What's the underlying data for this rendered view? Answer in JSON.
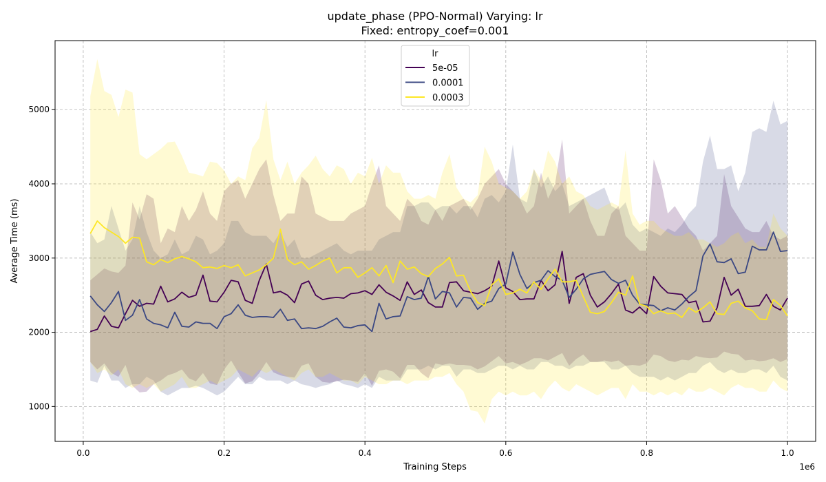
{
  "chart_data": {
    "type": "line",
    "title_line1": "update_phase (PPO-Normal) Varying: lr",
    "title_line2": "Fixed: entropy_coef=0.001",
    "xlabel": "Training Steps",
    "ylabel": "Average Time (ms)",
    "x_offset_label": "1e6",
    "xlim": [
      -0.04,
      1.04
    ],
    "ylim": [
      530,
      5930
    ],
    "x_ticks": [
      0.0,
      0.2,
      0.4,
      0.6,
      0.8,
      1.0
    ],
    "x_tick_labels": [
      "0.0",
      "0.2",
      "0.4",
      "0.6",
      "0.8",
      "1.0"
    ],
    "y_ticks": [
      1000,
      2000,
      3000,
      4000,
      5000
    ],
    "y_tick_labels": [
      "1000",
      "2000",
      "3000",
      "4000",
      "5000"
    ],
    "grid": true,
    "legend": {
      "title": "lr",
      "position": "upper-center"
    },
    "x_start": 0.01,
    "x_step": 0.01,
    "series": [
      {
        "name": "5e-05",
        "color": "#440154",
        "mean": [
          2010,
          2040,
          2220,
          2080,
          2060,
          2250,
          2430,
          2350,
          2390,
          2380,
          2620,
          2410,
          2450,
          2540,
          2470,
          2500,
          2770,
          2420,
          2410,
          2540,
          2700,
          2680,
          2430,
          2390,
          2700,
          2920,
          2530,
          2550,
          2500,
          2400,
          2650,
          2690,
          2500,
          2440,
          2460,
          2470,
          2460,
          2520,
          2530,
          2560,
          2510,
          2640,
          2540,
          2490,
          2430,
          2680,
          2510,
          2570,
          2400,
          2340,
          2340,
          2670,
          2680,
          2560,
          2540,
          2520,
          2560,
          2620,
          2960,
          2600,
          2550,
          2440,
          2450,
          2450,
          2700,
          2560,
          2640,
          3090,
          2390,
          2740,
          2790,
          2500,
          2340,
          2410,
          2520,
          2650,
          2300,
          2260,
          2340,
          2250,
          2750,
          2620,
          2530,
          2520,
          2510,
          2400,
          2420,
          2140,
          2150,
          2330,
          2740,
          2500,
          2580,
          2350,
          2350,
          2360,
          2510,
          2350,
          2300,
          2460
        ],
        "upper": [
          2700,
          2780,
          2860,
          2820,
          2800,
          2900,
          3750,
          3520,
          3860,
          3800,
          3200,
          3400,
          3350,
          3700,
          3500,
          3650,
          3900,
          3600,
          3500,
          3900,
          4000,
          4050,
          3800,
          4000,
          4200,
          4330,
          3850,
          3500,
          3600,
          3600,
          4100,
          4000,
          3600,
          3550,
          3500,
          3500,
          3500,
          3600,
          3650,
          3700,
          4000,
          4250,
          3700,
          3600,
          3500,
          3800,
          3700,
          3500,
          3450,
          3650,
          3500,
          3700,
          3750,
          3800,
          3650,
          3800,
          4000,
          4100,
          4200,
          4000,
          3900,
          3800,
          3600,
          3700,
          4150,
          3800,
          4000,
          4600,
          3600,
          3700,
          3800,
          3500,
          3300,
          3300,
          3600,
          3700,
          3300,
          3200,
          3100,
          3100,
          4330,
          4050,
          3600,
          3700,
          3550,
          3400,
          3300,
          3100,
          3200,
          3300,
          4130,
          3700,
          3550,
          3400,
          3350,
          3350,
          3500,
          3300,
          3250,
          3300
        ],
        "lower": [
          1600,
          1500,
          1580,
          1450,
          1400,
          1560,
          1280,
          1190,
          1200,
          1300,
          1350,
          1420,
          1450,
          1500,
          1380,
          1340,
          1450,
          1310,
          1290,
          1500,
          1620,
          1460,
          1310,
          1340,
          1450,
          1600,
          1460,
          1420,
          1400,
          1390,
          1550,
          1580,
          1400,
          1330,
          1320,
          1340,
          1360,
          1350,
          1330,
          1450,
          1280,
          1480,
          1500,
          1470,
          1380,
          1560,
          1560,
          1450,
          1380,
          1580,
          1560,
          1580,
          1560,
          1560,
          1550,
          1500,
          1540,
          1610,
          1680,
          1580,
          1600,
          1560,
          1600,
          1650,
          1650,
          1620,
          1670,
          1720,
          1550,
          1640,
          1700,
          1600,
          1600,
          1620,
          1600,
          1620,
          1550,
          1560,
          1550,
          1580,
          1700,
          1680,
          1620,
          1600,
          1630,
          1620,
          1680,
          1660,
          1650,
          1660,
          1740,
          1710,
          1700,
          1620,
          1630,
          1610,
          1620,
          1650,
          1600,
          1640
        ]
      },
      {
        "name": "0.0001",
        "color": "#3b4883",
        "mean": [
          2490,
          2370,
          2280,
          2400,
          2550,
          2160,
          2230,
          2440,
          2180,
          2120,
          2100,
          2060,
          2270,
          2080,
          2070,
          2140,
          2120,
          2120,
          2050,
          2210,
          2250,
          2370,
          2230,
          2200,
          2210,
          2210,
          2200,
          2310,
          2160,
          2180,
          2050,
          2060,
          2050,
          2080,
          2140,
          2190,
          2070,
          2060,
          2090,
          2100,
          2010,
          2390,
          2180,
          2210,
          2220,
          2480,
          2440,
          2460,
          2750,
          2450,
          2550,
          2530,
          2340,
          2470,
          2460,
          2310,
          2390,
          2420,
          2590,
          2650,
          3080,
          2780,
          2590,
          2670,
          2700,
          2830,
          2750,
          2700,
          2470,
          2580,
          2720,
          2780,
          2800,
          2820,
          2710,
          2660,
          2700,
          2500,
          2380,
          2370,
          2360,
          2290,
          2330,
          2300,
          2380,
          2480,
          2560,
          3030,
          3190,
          2950,
          2940,
          2990,
          2790,
          2810,
          3160,
          3110,
          3110,
          3350,
          3090,
          3100
        ],
        "upper": [
          3350,
          3200,
          3250,
          3700,
          3400,
          3100,
          3250,
          3700,
          3350,
          3100,
          3000,
          3050,
          3250,
          3050,
          3100,
          3300,
          3250,
          3050,
          3100,
          3200,
          3500,
          3500,
          3350,
          3300,
          3300,
          3300,
          3200,
          3350,
          3150,
          3250,
          3000,
          3000,
          3050,
          3100,
          3150,
          3200,
          3100,
          3050,
          3100,
          3100,
          3100,
          3250,
          3300,
          3350,
          3350,
          3700,
          3700,
          3750,
          3750,
          3650,
          3700,
          3700,
          3600,
          3700,
          3700,
          3550,
          3800,
          3850,
          3750,
          3900,
          4530,
          3800,
          3750,
          4200,
          3950,
          4100,
          3900,
          4000,
          3700,
          3750,
          3800,
          3850,
          3900,
          3950,
          3700,
          3650,
          3750,
          3450,
          3350,
          3400,
          3350,
          3300,
          3400,
          3350,
          3450,
          3600,
          3700,
          4300,
          4650,
          4200,
          4200,
          4250,
          3900,
          4150,
          4700,
          4750,
          4700,
          5120,
          4800,
          4850
        ],
        "lower": [
          1350,
          1320,
          1550,
          1350,
          1350,
          1250,
          1300,
          1300,
          1400,
          1350,
          1200,
          1150,
          1200,
          1250,
          1250,
          1280,
          1250,
          1200,
          1150,
          1200,
          1300,
          1400,
          1300,
          1300,
          1400,
          1350,
          1350,
          1350,
          1300,
          1350,
          1300,
          1280,
          1250,
          1280,
          1300,
          1350,
          1300,
          1280,
          1250,
          1300,
          1250,
          1400,
          1350,
          1350,
          1350,
          1500,
          1500,
          1500,
          1550,
          1500,
          1550,
          1550,
          1400,
          1500,
          1500,
          1450,
          1450,
          1500,
          1550,
          1550,
          1500,
          1550,
          1500,
          1500,
          1600,
          1600,
          1550,
          1550,
          1500,
          1550,
          1550,
          1600,
          1600,
          1600,
          1500,
          1500,
          1550,
          1450,
          1400,
          1400,
          1400,
          1350,
          1400,
          1350,
          1400,
          1450,
          1450,
          1550,
          1600,
          1500,
          1450,
          1500,
          1450,
          1450,
          1500,
          1500,
          1450,
          1550,
          1400,
          1350
        ]
      },
      {
        "name": "0.0003",
        "color": "#fde725",
        "mean": [
          3330,
          3500,
          3410,
          3350,
          3290,
          3200,
          3280,
          3270,
          2950,
          2910,
          2980,
          2940,
          2990,
          3020,
          2990,
          2950,
          2870,
          2880,
          2860,
          2900,
          2870,
          2910,
          2760,
          2800,
          2840,
          2910,
          3000,
          3390,
          2980,
          2910,
          2950,
          2850,
          2900,
          2960,
          3000,
          2800,
          2870,
          2870,
          2740,
          2800,
          2870,
          2760,
          2900,
          2670,
          2960,
          2850,
          2880,
          2790,
          2750,
          2860,
          2920,
          3010,
          2760,
          2770,
          2550,
          2400,
          2360,
          2640,
          2720,
          2510,
          2530,
          2580,
          2530,
          2680,
          2580,
          2720,
          2850,
          2680,
          2680,
          2700,
          2480,
          2270,
          2250,
          2280,
          2400,
          2540,
          2500,
          2760,
          2380,
          2350,
          2250,
          2290,
          2250,
          2260,
          2200,
          2330,
          2270,
          2330,
          2410,
          2250,
          2240,
          2390,
          2420,
          2330,
          2290,
          2180,
          2170,
          2440,
          2360,
          2220
        ],
        "upper": [
          5180,
          5680,
          5250,
          5200,
          4900,
          5270,
          5230,
          4400,
          4330,
          4400,
          4470,
          4560,
          4570,
          4380,
          4150,
          4130,
          4100,
          4300,
          4280,
          4180,
          4000,
          4100,
          4050,
          4480,
          4620,
          5130,
          4330,
          4050,
          4300,
          4000,
          4150,
          4250,
          4380,
          4200,
          4100,
          4250,
          4200,
          4000,
          4150,
          4100,
          4350,
          4000,
          4250,
          4150,
          4150,
          3900,
          3800,
          3800,
          3850,
          3800,
          4150,
          4400,
          3950,
          3800,
          3750,
          3850,
          4500,
          4300,
          4000,
          3950,
          3900,
          3800,
          3900,
          4200,
          4050,
          4450,
          4300,
          4000,
          4100,
          3900,
          3850,
          3700,
          3650,
          3700,
          3750,
          3700,
          4450,
          3600,
          3450,
          3500,
          3500,
          3400,
          3350,
          3300,
          3300,
          3350,
          3250,
          3250,
          3200,
          3150,
          3200,
          3300,
          3350,
          3200,
          3250,
          3150,
          3150,
          3600,
          3400,
          3300
        ],
        "lower": [
          1600,
          1450,
          1500,
          1420,
          1500,
          1300,
          1250,
          1300,
          1250,
          1300,
          1200,
          1250,
          1300,
          1400,
          1250,
          1250,
          1300,
          1350,
          1300,
          1350,
          1400,
          1500,
          1450,
          1400,
          1500,
          1450,
          1500,
          1450,
          1400,
          1350,
          1450,
          1500,
          1400,
          1400,
          1450,
          1400,
          1350,
          1350,
          1300,
          1400,
          1350,
          1300,
          1300,
          1350,
          1350,
          1300,
          1350,
          1350,
          1350,
          1400,
          1400,
          1450,
          1300,
          1200,
          950,
          930,
          770,
          1100,
          1200,
          1150,
          1200,
          1150,
          1150,
          1200,
          1100,
          1250,
          1350,
          1250,
          1200,
          1300,
          1250,
          1200,
          1150,
          1200,
          1250,
          1250,
          1100,
          1300,
          1200,
          1200,
          1150,
          1200,
          1150,
          1200,
          1150,
          1250,
          1200,
          1200,
          1250,
          1200,
          1150,
          1250,
          1300,
          1250,
          1250,
          1200,
          1200,
          1350,
          1250,
          1200
        ]
      }
    ]
  }
}
